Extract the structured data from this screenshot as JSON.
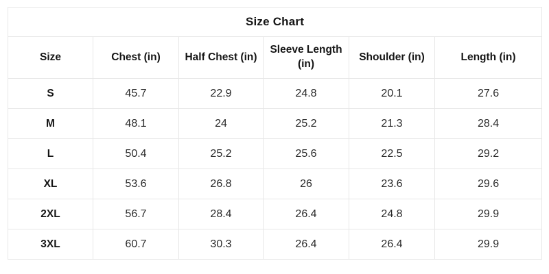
{
  "table": {
    "title": "Size Chart",
    "headers": [
      "Size",
      "Chest (in)",
      "Half Chest (in)",
      "Sleeve Length (in)",
      "Shoulder (in)",
      "Length (in)"
    ],
    "rows": [
      {
        "size": "S",
        "values": [
          "45.7",
          "22.9",
          "24.8",
          "20.1",
          "27.6"
        ]
      },
      {
        "size": "M",
        "values": [
          "48.1",
          "24",
          "25.2",
          "21.3",
          "28.4"
        ]
      },
      {
        "size": "L",
        "values": [
          "50.4",
          "25.2",
          "25.6",
          "22.5",
          "29.2"
        ]
      },
      {
        "size": "XL",
        "values": [
          "53.6",
          "26.8",
          "26",
          "23.6",
          "29.6"
        ]
      },
      {
        "size": "2XL",
        "values": [
          "56.7",
          "28.4",
          "26.4",
          "24.8",
          "29.9"
        ]
      },
      {
        "size": "3XL",
        "values": [
          "60.7",
          "30.3",
          "26.4",
          "26.4",
          "29.9"
        ]
      }
    ]
  },
  "colors": {
    "grid_border": "#e7e7e7",
    "background": "#ffffff",
    "text_bold": "#151515",
    "text_value": "#2a2a2a"
  },
  "chart_data": {
    "type": "table",
    "title": "Size Chart",
    "columns": [
      "Size",
      "Chest (in)",
      "Half Chest (in)",
      "Sleeve Length (in)",
      "Shoulder (in)",
      "Length (in)"
    ],
    "rows": [
      [
        "S",
        45.7,
        22.9,
        24.8,
        20.1,
        27.6
      ],
      [
        "M",
        48.1,
        24,
        25.2,
        21.3,
        28.4
      ],
      [
        "L",
        50.4,
        25.2,
        25.6,
        22.5,
        29.2
      ],
      [
        "XL",
        53.6,
        26.8,
        26,
        23.6,
        29.6
      ],
      [
        "2XL",
        56.7,
        28.4,
        26.4,
        24.8,
        29.9
      ],
      [
        "3XL",
        60.7,
        30.3,
        26.4,
        26.4,
        29.9
      ]
    ],
    "layout_hints": {
      "grid": true,
      "all_cells_centered": true,
      "bold": [
        "title",
        "header_row",
        "size_column"
      ]
    }
  }
}
